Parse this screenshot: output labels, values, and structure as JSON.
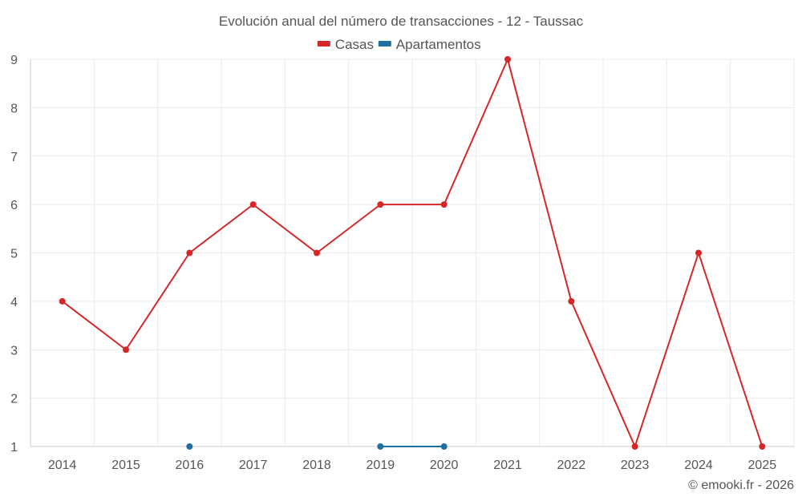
{
  "chart_data": {
    "type": "line",
    "title": "Evolución anual del número de transacciones - 12 - Taussac",
    "xlabel": "",
    "ylabel": "",
    "categories": [
      "2014",
      "2015",
      "2016",
      "2017",
      "2018",
      "2019",
      "2020",
      "2021",
      "2022",
      "2023",
      "2024",
      "2025"
    ],
    "ylim": [
      1,
      9
    ],
    "yticks": [
      1,
      2,
      3,
      4,
      5,
      6,
      7,
      8,
      9
    ],
    "grid": true,
    "legend_position": "top-center",
    "series": [
      {
        "name": "Casas",
        "color": "#d62728",
        "values": [
          4,
          3,
          5,
          6,
          5,
          6,
          6,
          9,
          4,
          1,
          5,
          1
        ]
      },
      {
        "name": "Apartamentos",
        "color": "#1f6fa3",
        "values": [
          null,
          null,
          1,
          null,
          null,
          1,
          1,
          null,
          null,
          null,
          null,
          null
        ]
      }
    ],
    "credit": "© emooki.fr - 2026"
  }
}
